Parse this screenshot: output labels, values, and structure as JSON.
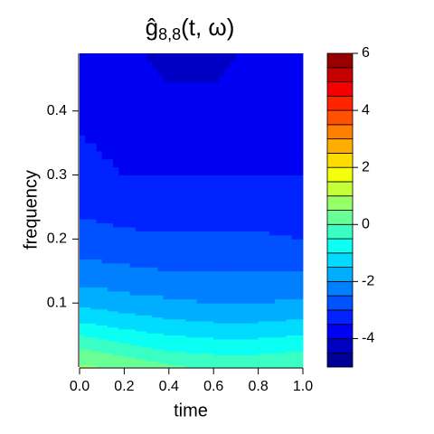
{
  "chart_data": {
    "type": "contour",
    "title_parts": [
      "ĝ",
      "8,8",
      "(t, ω)"
    ],
    "xlabel": "time",
    "ylabel": "frequency",
    "x": [
      0,
      0.2,
      0.4,
      0.6,
      0.8,
      1.0
    ],
    "y": [
      0,
      0.025,
      0.05,
      0.075,
      0.1,
      0.15,
      0.2,
      0.25,
      0.3,
      0.4,
      0.49
    ],
    "z": [
      [
        0.6,
        0.4,
        0.1,
        -0.1,
        -0.1,
        0.0
      ],
      [
        0.1,
        -0.2,
        -0.5,
        -0.6,
        -0.6,
        -0.5
      ],
      [
        -0.5,
        -0.8,
        -1.0,
        -1.1,
        -1.1,
        -1.0
      ],
      [
        -1.1,
        -1.3,
        -1.5,
        -1.6,
        -1.6,
        -1.5
      ],
      [
        -1.6,
        -1.8,
        -1.9,
        -2.0,
        -2.0,
        -1.9
      ],
      [
        -2.3,
        -2.4,
        -2.5,
        -2.5,
        -2.5,
        -2.5
      ],
      [
        -2.8,
        -2.9,
        -2.9,
        -2.9,
        -2.9,
        -3.0
      ],
      [
        -3.1,
        -3.2,
        -3.3,
        -3.3,
        -3.3,
        -3.3
      ],
      [
        -3.3,
        -3.5,
        -3.5,
        -3.5,
        -3.5,
        -3.5
      ],
      [
        -3.6,
        -3.8,
        -3.9,
        -3.9,
        -3.8,
        -3.7
      ],
      [
        -3.8,
        -3.9,
        -4.1,
        -4.1,
        -3.9,
        -3.8
      ]
    ],
    "xlim": [
      0,
      1
    ],
    "xticks": [
      {
        "value": 0,
        "label": "0.0"
      },
      {
        "value": 0.2,
        "label": "0.2"
      },
      {
        "value": 0.4,
        "label": "0.4"
      },
      {
        "value": 0.6,
        "label": "0.6"
      },
      {
        "value": 0.8,
        "label": "0.8"
      },
      {
        "value": 1,
        "label": "1.0"
      }
    ],
    "ylim": [
      0,
      0.49
    ],
    "yticks": [
      0.1,
      0.2,
      0.3,
      0.4
    ],
    "zlim": [
      -5,
      6
    ],
    "zticks": [
      -4,
      -2,
      0,
      2,
      4,
      6
    ],
    "colors": [
      "#000097",
      "#0000C5",
      "#0000F3",
      "#0023FF",
      "#0051FF",
      "#0080FF",
      "#00AEFF",
      "#00DCFF",
      "#0BFFF3",
      "#3AFFC5",
      "#68FF97",
      "#97FF68",
      "#C5FF3A",
      "#F3FF0B",
      "#FFDC00",
      "#FFAE00",
      "#FF8000",
      "#FF5100",
      "#FF2300",
      "#F30000",
      "#C50000",
      "#970000"
    ]
  }
}
